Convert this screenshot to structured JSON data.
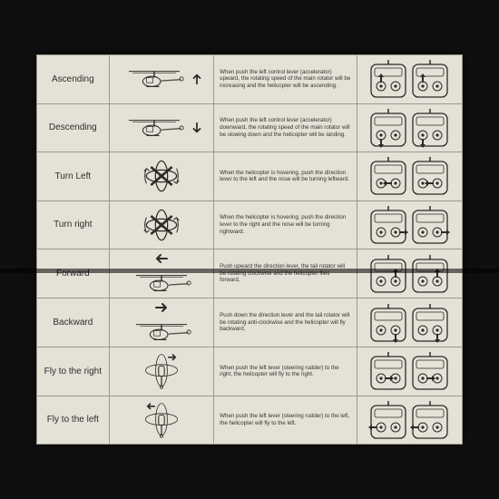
{
  "sheet": {
    "background_color": "#e4e1d6",
    "grid_color": "#9b988e",
    "text_color": "#2d2d2d",
    "rows": [
      {
        "label": "Ascending",
        "diagram_type": "heli-side",
        "side_arrow": "up",
        "description": "When push the left control lever (accelerator) upward, the rotating speed of the main rotator will be increasing and the helicopter will be ascending.",
        "left_stick_arrow": "up"
      },
      {
        "label": "Descending",
        "diagram_type": "heli-side",
        "side_arrow": "down",
        "description": "When push the left control lever (accelerator) downward, the rotating speed of the main rotator will be slowing down and the helicopter will be landing.",
        "left_stick_arrow": "down"
      },
      {
        "label": "Turn Left",
        "diagram_type": "rotor-top-ccw",
        "description": "When the helicopter is hovering, push the direction lever to the left and the nose will be turning leftward.",
        "right_stick_arrow": "left"
      },
      {
        "label": "Turn right",
        "diagram_type": "rotor-top-cw",
        "description": "When the helicopter is hovering, push the direction lever to the right and the nose will be turning rightward.",
        "right_stick_arrow": "right"
      },
      {
        "label": "Forward",
        "diagram_type": "heli-side",
        "side_arrow": "left",
        "description": "Push upward the direction lever, the tail rotator will be rotating clockwise and the helicopter flies forward.",
        "right_stick_arrow": "up"
      },
      {
        "label": "Backward",
        "diagram_type": "heli-side",
        "side_arrow": "right",
        "description": "Push down the direction lever and the tail rotator will be rotating anti-clockwise and the helicopter will fly backward.",
        "right_stick_arrow": "down"
      },
      {
        "label": "Fly to the right",
        "diagram_type": "heli-top",
        "side_arrow": "right-top",
        "description": "When push the left lever (steering rudder) to the right, the helicopter will fly to the right.",
        "left_stick_arrow": "right"
      },
      {
        "label": "Fly to the left",
        "diagram_type": "heli-top",
        "side_arrow": "left-top",
        "description": "When push the left lever (steering rudder) to the left, the helicopter will fly to the left.",
        "left_stick_arrow": "left"
      }
    ]
  }
}
